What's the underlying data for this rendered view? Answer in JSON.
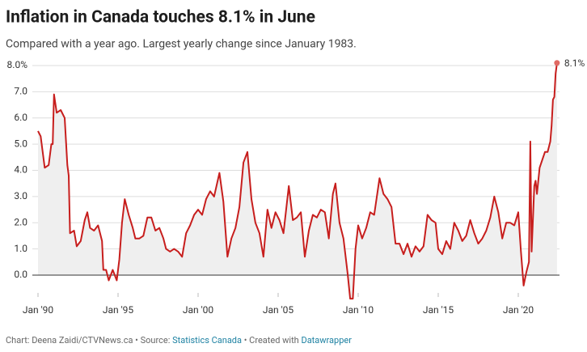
{
  "chart_data": {
    "type": "line",
    "title": "Inflation in Canada touches 8.1% in June",
    "subtitle": "Compared with a year ago. Largest yearly change since January 1983.",
    "x": [
      "1990-01",
      "1990-03",
      "1990-06",
      "1990-09",
      "1990-11",
      "1990-12",
      "1991-01",
      "1991-03",
      "1991-06",
      "1991-09",
      "1991-11",
      "1991-12",
      "1992-01",
      "1992-04",
      "1992-06",
      "1992-09",
      "1992-12",
      "1993-02",
      "1993-04",
      "1993-07",
      "1993-10",
      "1994-01",
      "1994-02",
      "1994-04",
      "1994-06",
      "1994-09",
      "1994-12",
      "1995-02",
      "1995-04",
      "1995-06",
      "1995-09",
      "1995-12",
      "1996-02",
      "1996-05",
      "1996-08",
      "1996-11",
      "1997-02",
      "1997-05",
      "1997-08",
      "1997-11",
      "1998-01",
      "1998-04",
      "1998-07",
      "1998-10",
      "1999-01",
      "1999-04",
      "1999-07",
      "1999-10",
      "2000-01",
      "2000-04",
      "2000-07",
      "2000-10",
      "2001-01",
      "2001-05",
      "2001-08",
      "2001-11",
      "2002-02",
      "2002-05",
      "2002-08",
      "2002-11",
      "2003-02",
      "2003-05",
      "2003-08",
      "2003-11",
      "2004-02",
      "2004-05",
      "2004-08",
      "2004-11",
      "2005-02",
      "2005-05",
      "2005-09",
      "2005-12",
      "2006-03",
      "2006-06",
      "2006-09",
      "2006-12",
      "2007-03",
      "2007-06",
      "2007-09",
      "2007-12",
      "2008-03",
      "2008-06",
      "2008-08",
      "2008-11",
      "2009-02",
      "2009-05",
      "2009-07",
      "2009-09",
      "2009-11",
      "2010-01",
      "2010-04",
      "2010-07",
      "2010-10",
      "2011-01",
      "2011-05",
      "2011-08",
      "2011-11",
      "2012-02",
      "2012-05",
      "2012-08",
      "2012-11",
      "2013-02",
      "2013-05",
      "2013-08",
      "2013-11",
      "2014-02",
      "2014-05",
      "2014-08",
      "2014-11",
      "2015-01",
      "2015-04",
      "2015-07",
      "2015-10",
      "2016-01",
      "2016-04",
      "2016-07",
      "2016-10",
      "2017-01",
      "2017-04",
      "2017-07",
      "2017-10",
      "2018-01",
      "2018-04",
      "2018-07",
      "2018-10",
      "2019-01",
      "2019-04",
      "2019-07",
      "2019-10",
      "2020-01",
      "2020-03",
      "2020-05",
      "2020-07",
      "2020-09",
      "2020-10",
      "2020-11",
      "2021-01",
      "2021-02",
      "2021-03",
      "2021-05",
      "2021-07",
      "2021-09",
      "2021-11",
      "2022-01",
      "2022-02",
      "2022-03",
      "2022-04",
      "2022-05",
      "2022-06"
    ],
    "series": [
      {
        "name": "Inflation",
        "color": "#c71e1d",
        "values": [
          5.5,
          5.3,
          4.1,
          4.2,
          5.0,
          5.0,
          6.9,
          6.2,
          6.3,
          6.0,
          4.2,
          3.8,
          1.6,
          1.7,
          1.1,
          1.3,
          2.1,
          2.4,
          1.8,
          1.7,
          1.9,
          1.3,
          0.2,
          0.2,
          -0.2,
          0.2,
          -0.2,
          0.6,
          2.0,
          2.9,
          2.3,
          1.8,
          1.4,
          1.4,
          1.5,
          2.2,
          2.2,
          1.7,
          1.8,
          1.4,
          1.0,
          0.9,
          1.0,
          0.9,
          0.7,
          1.6,
          1.9,
          2.3,
          2.5,
          2.3,
          2.9,
          3.2,
          3.0,
          3.9,
          2.8,
          0.7,
          1.4,
          1.8,
          2.6,
          4.3,
          4.7,
          2.9,
          2.0,
          1.6,
          0.7,
          2.5,
          1.8,
          2.4,
          2.1,
          1.6,
          3.4,
          2.1,
          2.2,
          2.4,
          0.7,
          1.7,
          2.3,
          2.2,
          2.5,
          2.4,
          1.4,
          3.1,
          3.5,
          2.0,
          1.4,
          0.1,
          -0.9,
          -0.9,
          1.0,
          1.9,
          1.4,
          1.8,
          2.4,
          2.3,
          3.7,
          3.1,
          2.9,
          2.6,
          1.2,
          1.2,
          0.8,
          1.2,
          0.7,
          1.1,
          0.9,
          1.1,
          2.3,
          2.1,
          2.0,
          1.0,
          0.8,
          1.3,
          1.0,
          2.0,
          1.7,
          1.3,
          1.5,
          2.1,
          1.6,
          1.2,
          1.4,
          1.7,
          2.2,
          3.0,
          2.4,
          1.4,
          2.0,
          2.0,
          1.9,
          2.4,
          0.9,
          -0.4,
          0.1,
          0.5,
          5.1,
          0.9,
          3.4,
          3.6,
          3.1,
          4.1,
          4.4,
          4.7,
          4.7,
          5.1,
          5.7,
          6.7,
          6.8,
          7.7,
          8.1
        ]
      }
    ],
    "end_label": "8.1%",
    "ylim": [
      -0.6,
      8.2
    ],
    "yticks": [
      {
        "value": 0,
        "label": "0.0"
      },
      {
        "value": 1,
        "label": "1.0"
      },
      {
        "value": 2,
        "label": "2.0"
      },
      {
        "value": 3,
        "label": "3.0"
      },
      {
        "value": 4,
        "label": "4.0"
      },
      {
        "value": 5,
        "label": "5.0"
      },
      {
        "value": 6,
        "label": "6.0"
      },
      {
        "value": 7,
        "label": "7.0"
      },
      {
        "value": 8,
        "label": "8.0%"
      }
    ],
    "xticks": [
      {
        "value": "1990-01",
        "label": "Jan '90"
      },
      {
        "value": "1995-01",
        "label": "Jan '95"
      },
      {
        "value": "2000-01",
        "label": "Jan '00"
      },
      {
        "value": "2005-01",
        "label": "Jan '05"
      },
      {
        "value": "2010-01",
        "label": "Jan '10"
      },
      {
        "value": "2015-01",
        "label": "Jan '15"
      },
      {
        "value": "2020-01",
        "label": "Jan '20"
      }
    ],
    "grid": true,
    "footer": {
      "credit": "Chart: Deena Zaidi/CTVNews.ca • Source: ",
      "source": "Statistics Canada",
      "mid": " • Created with ",
      "tool": "Datawrapper"
    }
  }
}
